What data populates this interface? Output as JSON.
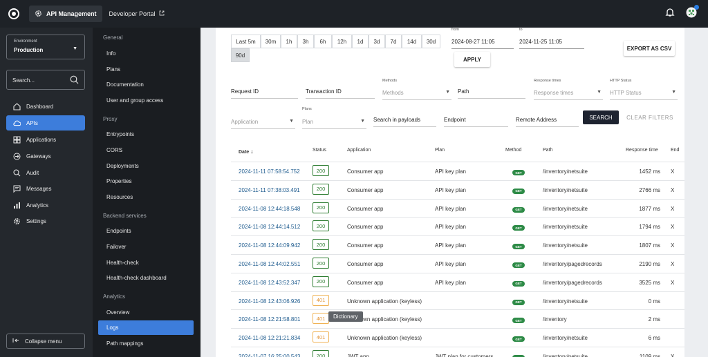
{
  "topbar": {
    "product": "API Management",
    "developer_portal": "Developer Portal"
  },
  "environment": {
    "label": "Environment",
    "value": "Production"
  },
  "search": {
    "placeholder": "Search..."
  },
  "nav": [
    {
      "label": "Dashboard",
      "icon": "dashboard-icon"
    },
    {
      "label": "APIs",
      "icon": "cloud-icon"
    },
    {
      "label": "Applications",
      "icon": "applications-icon"
    },
    {
      "label": "Gateways",
      "icon": "gateway-icon"
    },
    {
      "label": "Audit",
      "icon": "audit-icon"
    },
    {
      "label": "Messages",
      "icon": "messages-icon"
    },
    {
      "label": "Analytics",
      "icon": "analytics-icon"
    },
    {
      "label": "Settings",
      "icon": "settings-icon"
    }
  ],
  "collapse_label": "Collapse menu",
  "subnav": {
    "general_heading": "General",
    "general": [
      "Info",
      "Plans",
      "Documentation",
      "User and group access"
    ],
    "proxy_heading": "Proxy",
    "proxy": [
      "Entrypoints",
      "CORS",
      "Deployments",
      "Properties",
      "Resources"
    ],
    "backend_heading": "Backend services",
    "backend": [
      "Endpoints",
      "Failover",
      "Health-check",
      "Health-check dashboard"
    ],
    "analytics_heading": "Analytics",
    "analytics": [
      "Overview",
      "Logs",
      "Path mappings"
    ]
  },
  "timeframes": [
    "Last 5m",
    "30m",
    "1h",
    "3h",
    "6h",
    "12h",
    "1d",
    "3d",
    "7d",
    "14d",
    "30d",
    "90d"
  ],
  "date_range": {
    "from_label": "from",
    "from_value": "2024-08-27 11:05",
    "to_label": "to",
    "to_value": "2024-11-25 11:05"
  },
  "apply_label": "APPLY",
  "export_label": "EXPORT AS CSV",
  "filters": {
    "request_id": "Request ID",
    "transaction_id": "Transaction ID",
    "methods_label": "Methods",
    "methods_placeholder": "Methods",
    "path": "Path",
    "response_times_label": "Response times",
    "response_times_placeholder": "Response times",
    "http_status_label": "HTTP Status",
    "http_status_placeholder": "HTTP Status",
    "application_placeholder": "Application",
    "plans_label": "Plans",
    "plan_placeholder": "Plan",
    "search_payloads": "Search in payloads",
    "endpoint": "Endpoint",
    "remote_address": "Remote Address",
    "search_button": "SEARCH",
    "clear_button": "CLEAR FILTERS"
  },
  "table": {
    "headers": {
      "date": "Date",
      "status": "Status",
      "application": "Application",
      "plan": "Plan",
      "method": "Method",
      "path": "Path",
      "response_time": "Response time",
      "endpoint": "End"
    },
    "rows": [
      {
        "date": "2024-11-11 07:58:54.752",
        "status": "200",
        "application": "Consumer app",
        "plan": "API key plan",
        "method": "GET",
        "path": "/inventory/netsuite",
        "response_time": "1452 ms",
        "endpoint": "X"
      },
      {
        "date": "2024-11-11 07:38:03.491",
        "status": "200",
        "application": "Consumer app",
        "plan": "API key plan",
        "method": "GET",
        "path": "/inventory/netsuite",
        "response_time": "2766 ms",
        "endpoint": "X"
      },
      {
        "date": "2024-11-08 12:44:18.548",
        "status": "200",
        "application": "Consumer app",
        "plan": "API key plan",
        "method": "GET",
        "path": "/inventory/netsuite",
        "response_time": "1877 ms",
        "endpoint": "X"
      },
      {
        "date": "2024-11-08 12:44:14.512",
        "status": "200",
        "application": "Consumer app",
        "plan": "API key plan",
        "method": "GET",
        "path": "/inventory/netsuite",
        "response_time": "1794 ms",
        "endpoint": "X"
      },
      {
        "date": "2024-11-08 12:44:09.942",
        "status": "200",
        "application": "Consumer app",
        "plan": "API key plan",
        "method": "GET",
        "path": "/inventory/netsuite",
        "response_time": "1807 ms",
        "endpoint": "X"
      },
      {
        "date": "2024-11-08 12:44:02.551",
        "status": "200",
        "application": "Consumer app",
        "plan": "API key plan",
        "method": "GET",
        "path": "/inventory/pagedrecords",
        "response_time": "2190 ms",
        "endpoint": "X"
      },
      {
        "date": "2024-11-08 12:43:52.347",
        "status": "200",
        "application": "Consumer app",
        "plan": "API key plan",
        "method": "GET",
        "path": "/inventory/pagedrecords",
        "response_time": "3525 ms",
        "endpoint": "X"
      },
      {
        "date": "2024-11-08 12:43:06.926",
        "status": "401",
        "application": "Unknown application (keyless)",
        "plan": "",
        "method": "GET",
        "path": "/inventory/netsuite",
        "response_time": "0 ms",
        "endpoint": ""
      },
      {
        "date": "2024-11-08 12:21:58.801",
        "status": "401",
        "application": "Unknown application (keyless)",
        "plan": "",
        "method": "GET",
        "path": "/inventory",
        "response_time": "2 ms",
        "endpoint": ""
      },
      {
        "date": "2024-11-08 12:21:21.834",
        "status": "401",
        "application": "Unknown application (keyless)",
        "plan": "",
        "method": "GET",
        "path": "/inventory/netsuite",
        "response_time": "6 ms",
        "endpoint": ""
      },
      {
        "date": "2024-11-07 16:25:00.543",
        "status": "200",
        "application": "JWT app",
        "plan": "JWT plan for customers",
        "method": "GET",
        "path": "/inventory/netsuite",
        "response_time": "1109 ms",
        "endpoint": "X"
      }
    ]
  },
  "tooltip": "Dictionary",
  "colors": {
    "accent": "#3d7ddb",
    "success": "#2e7d32",
    "warning": "#e3963a",
    "sidebar": "#24282d"
  }
}
